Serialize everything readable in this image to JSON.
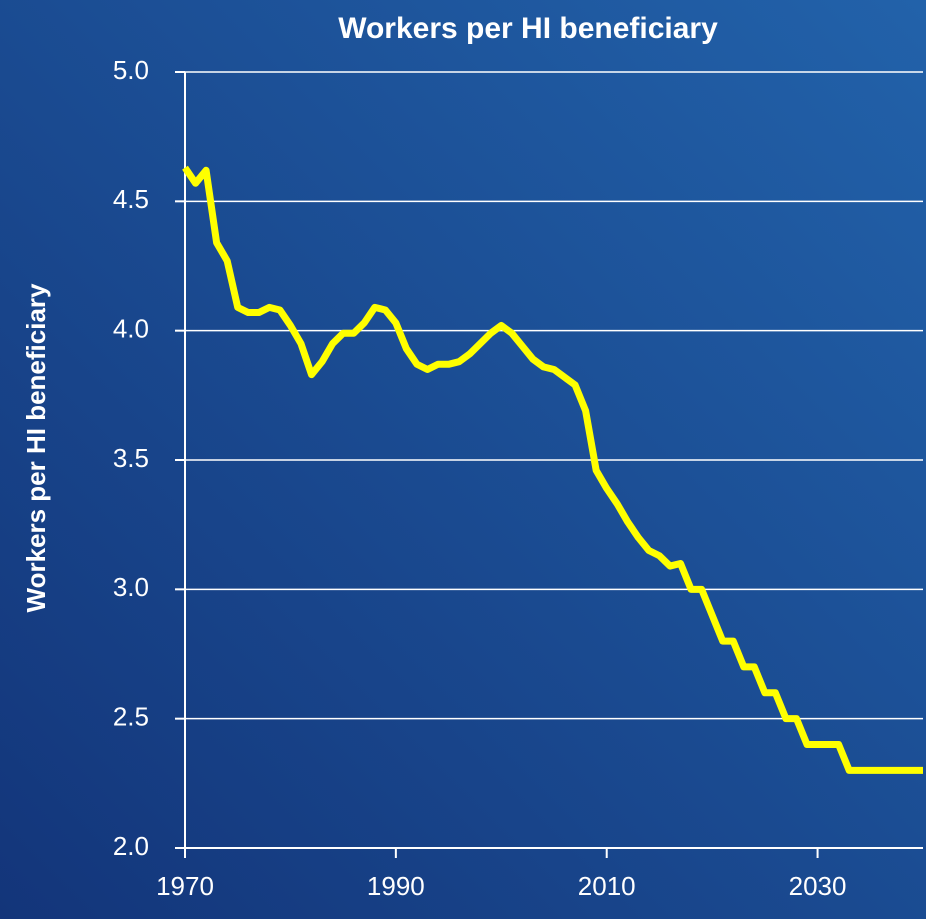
{
  "chart_data": {
    "type": "line",
    "title": "Workers per HI beneficiary",
    "ylabel": "Workers per HI beneficiary",
    "x": [
      1970,
      1971,
      1972,
      1973,
      1974,
      1975,
      1976,
      1977,
      1978,
      1979,
      1980,
      1981,
      1982,
      1983,
      1984,
      1985,
      1986,
      1987,
      1988,
      1989,
      1990,
      1991,
      1992,
      1993,
      1994,
      1995,
      1996,
      1997,
      1998,
      1999,
      2000,
      2001,
      2002,
      2003,
      2004,
      2005,
      2006,
      2007,
      2008,
      2009,
      2010,
      2011,
      2012,
      2013,
      2014,
      2015,
      2016,
      2017,
      2018,
      2019,
      2020,
      2021,
      2022,
      2023,
      2024,
      2025,
      2026,
      2027,
      2028,
      2029,
      2030,
      2031,
      2032,
      2033,
      2034,
      2035,
      2036,
      2037,
      2038,
      2039,
      2040
    ],
    "series": [
      {
        "name": "Workers per HI beneficiary",
        "color": "#ffff00",
        "values": [
          4.63,
          4.57,
          4.62,
          4.34,
          4.27,
          4.09,
          4.07,
          4.07,
          4.09,
          4.08,
          4.02,
          3.95,
          3.83,
          3.88,
          3.95,
          3.99,
          3.99,
          4.03,
          4.09,
          4.08,
          4.03,
          3.93,
          3.87,
          3.85,
          3.87,
          3.87,
          3.88,
          3.91,
          3.95,
          3.99,
          4.02,
          3.99,
          3.94,
          3.89,
          3.86,
          3.85,
          3.82,
          3.79,
          3.69,
          3.46,
          3.39,
          3.33,
          3.26,
          3.2,
          3.15,
          3.13,
          3.09,
          3.1,
          3.0,
          3.0,
          2.9,
          2.8,
          2.8,
          2.7,
          2.7,
          2.6,
          2.6,
          2.5,
          2.5,
          2.4,
          2.4,
          2.4,
          2.4,
          2.3,
          2.3,
          2.3,
          2.3,
          2.3,
          2.3,
          2.3,
          2.3
        ]
      }
    ],
    "xlim": [
      1970,
      2040
    ],
    "xticks": [
      1970,
      1990,
      2010,
      2030
    ],
    "ylim": [
      2.0,
      5.0
    ],
    "yticks": [
      {
        "value": 2,
        "label": "2.0"
      },
      2.5,
      {
        "value": 3,
        "label": "3.0"
      },
      3.5,
      {
        "value": 4,
        "label": "4.0"
      },
      4.5,
      {
        "value": 5,
        "label": "5.0"
      }
    ],
    "grid": true
  }
}
